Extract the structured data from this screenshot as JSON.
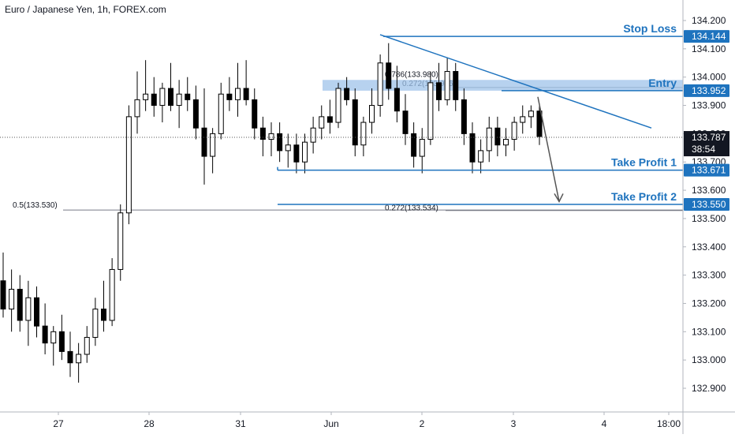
{
  "header": {
    "title": "Euro / Japanese Yen, 1h, FOREX.com"
  },
  "colors": {
    "up": "#ffffff",
    "down": "#000000",
    "wick": "#000000",
    "trade_line": "#1e73be",
    "label_bg": "#1e73be",
    "fib_line": "#787b86",
    "zone_fill": "#9fc3ea",
    "arrow": "#555555",
    "price_bg": "#131722"
  },
  "chart_data": {
    "type": "candlestick",
    "title": "Euro / Japanese Yen, 1h, FOREX.com",
    "y_axis": {
      "ticks": [
        "132.900",
        "133.000",
        "133.100",
        "133.200",
        "133.300",
        "133.400",
        "133.500",
        "133.600",
        "133.700",
        "133.800",
        "133.900",
        "134.000",
        "134.100",
        "134.200"
      ],
      "range": [
        132.85,
        134.25
      ]
    },
    "x_axis": {
      "ticks": [
        "27",
        "28",
        "31",
        "Jun",
        "2",
        "3",
        "4",
        "18:00"
      ]
    },
    "current_price": {
      "value": "133.787",
      "countdown": "38:54"
    },
    "levels": [
      {
        "label": "Stop Loss",
        "price": "134.144",
        "value": 134.144
      },
      {
        "label": "Entry",
        "price": "133.952",
        "value": 133.952
      },
      {
        "label": "Take Profit 1",
        "price": "133.671",
        "value": 133.671
      },
      {
        "label": "Take Profit 2",
        "price": "133.550",
        "value": 133.55
      }
    ],
    "fib_annotations": [
      {
        "text": "0.5(133.530)",
        "value": 133.53
      },
      {
        "text": "0.786(133.980)",
        "value": 133.98
      },
      {
        "text": "0.272(133.956)",
        "value": 133.956
      },
      {
        "text": "0.272(133.534)",
        "value": 133.534
      }
    ],
    "candles": [
      [
        133.28,
        133.38,
        133.15,
        133.18
      ],
      [
        133.18,
        133.32,
        133.1,
        133.25
      ],
      [
        133.25,
        133.3,
        133.1,
        133.14
      ],
      [
        133.14,
        133.28,
        133.05,
        133.22
      ],
      [
        133.22,
        133.26,
        133.08,
        133.12
      ],
      [
        133.12,
        133.2,
        133.02,
        133.06
      ],
      [
        133.06,
        133.12,
        132.98,
        133.1
      ],
      [
        133.1,
        133.16,
        133.0,
        133.03
      ],
      [
        133.03,
        133.1,
        132.94,
        132.99
      ],
      [
        132.99,
        133.06,
        132.92,
        133.02
      ],
      [
        133.02,
        133.12,
        132.99,
        133.08
      ],
      [
        133.08,
        133.22,
        133.05,
        133.18
      ],
      [
        133.18,
        133.28,
        133.1,
        133.14
      ],
      [
        133.14,
        133.36,
        133.12,
        133.32
      ],
      [
        133.32,
        133.55,
        133.28,
        133.52
      ],
      [
        133.52,
        133.9,
        133.48,
        133.86
      ],
      [
        133.86,
        134.02,
        133.8,
        133.92
      ],
      [
        133.92,
        134.06,
        133.88,
        133.94
      ],
      [
        133.94,
        134.0,
        133.86,
        133.9
      ],
      [
        133.9,
        133.98,
        133.84,
        133.96
      ],
      [
        133.96,
        134.05,
        133.88,
        133.9
      ],
      [
        133.9,
        133.99,
        133.82,
        133.94
      ],
      [
        133.94,
        134.0,
        133.88,
        133.92
      ],
      [
        133.92,
        133.97,
        133.78,
        133.82
      ],
      [
        133.82,
        133.96,
        133.62,
        133.72
      ],
      [
        133.72,
        133.82,
        133.66,
        133.8
      ],
      [
        133.8,
        133.98,
        133.78,
        133.94
      ],
      [
        133.94,
        134.0,
        133.88,
        133.92
      ],
      [
        133.92,
        134.05,
        133.86,
        133.96
      ],
      [
        133.96,
        134.06,
        133.9,
        133.92
      ],
      [
        133.92,
        133.96,
        133.78,
        133.82
      ],
      [
        133.82,
        133.86,
        133.72,
        133.78
      ],
      [
        133.78,
        133.84,
        133.72,
        133.8
      ],
      [
        133.8,
        133.84,
        133.7,
        133.74
      ],
      [
        133.74,
        133.8,
        133.68,
        133.76
      ],
      [
        133.76,
        133.8,
        133.66,
        133.7
      ],
      [
        133.7,
        133.8,
        133.66,
        133.77
      ],
      [
        133.77,
        133.86,
        133.73,
        133.82
      ],
      [
        133.82,
        133.9,
        133.78,
        133.86
      ],
      [
        133.86,
        133.92,
        133.8,
        133.84
      ],
      [
        133.84,
        133.98,
        133.82,
        133.96
      ],
      [
        133.96,
        134.0,
        133.9,
        133.92
      ],
      [
        133.92,
        133.96,
        133.72,
        133.76
      ],
      [
        133.76,
        133.86,
        133.72,
        133.84
      ],
      [
        133.84,
        133.96,
        133.8,
        133.9
      ],
      [
        133.9,
        134.08,
        133.86,
        134.05
      ],
      [
        134.05,
        134.12,
        133.92,
        133.96
      ],
      [
        133.96,
        134.04,
        133.84,
        133.88
      ],
      [
        133.88,
        133.94,
        133.76,
        133.8
      ],
      [
        133.8,
        133.84,
        133.68,
        133.72
      ],
      [
        133.72,
        133.82,
        133.66,
        133.78
      ],
      [
        133.78,
        134.02,
        133.76,
        133.98
      ],
      [
        133.98,
        134.05,
        133.88,
        133.92
      ],
      [
        133.92,
        134.07,
        133.9,
        134.02
      ],
      [
        134.02,
        134.05,
        133.88,
        133.92
      ],
      [
        133.92,
        133.96,
        133.76,
        133.8
      ],
      [
        133.8,
        133.84,
        133.66,
        133.7
      ],
      [
        133.7,
        133.78,
        133.66,
        133.74
      ],
      [
        133.74,
        133.86,
        133.7,
        133.82
      ],
      [
        133.82,
        133.86,
        133.72,
        133.76
      ],
      [
        133.76,
        133.82,
        133.72,
        133.78
      ],
      [
        133.78,
        133.86,
        133.74,
        133.84
      ],
      [
        133.84,
        133.9,
        133.8,
        133.86
      ],
      [
        133.86,
        133.9,
        133.82,
        133.88
      ],
      [
        133.88,
        133.9,
        133.76,
        133.79
      ]
    ]
  }
}
